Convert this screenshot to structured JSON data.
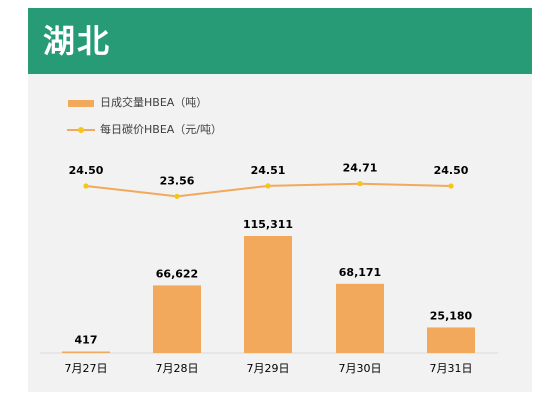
{
  "header": {
    "title": "湖北"
  },
  "legend": {
    "bar_label": "日成交量HBEA（吨）",
    "line_label": "每日碳价HBEA（元/吨）"
  },
  "colors": {
    "header_bg": "#279a76",
    "bar": "#f2a95b",
    "line": "#f2a95b",
    "marker": "#f5c518",
    "panel_bg": "#f2f2f2"
  },
  "chart_data": {
    "type": "bar",
    "categories": [
      "7月27日",
      "7月28日",
      "7月29日",
      "7月30日",
      "7月31日"
    ],
    "series": [
      {
        "name": "日成交量HBEA（吨）",
        "type": "bar",
        "values": [
          417,
          66622,
          115311,
          68171,
          25180
        ],
        "labels": [
          "417",
          "66,622",
          "115,311",
          "68,171",
          "25,180"
        ]
      },
      {
        "name": "每日碳价HBEA（元/吨）",
        "type": "line",
        "values": [
          24.5,
          23.56,
          24.51,
          24.71,
          24.5
        ],
        "labels": [
          "24.50",
          "23.56",
          "24.51",
          "24.71",
          "24.50"
        ]
      }
    ],
    "title": "",
    "xlabel": "",
    "ylabel": "",
    "grid": false,
    "legend_position": "top-left"
  }
}
